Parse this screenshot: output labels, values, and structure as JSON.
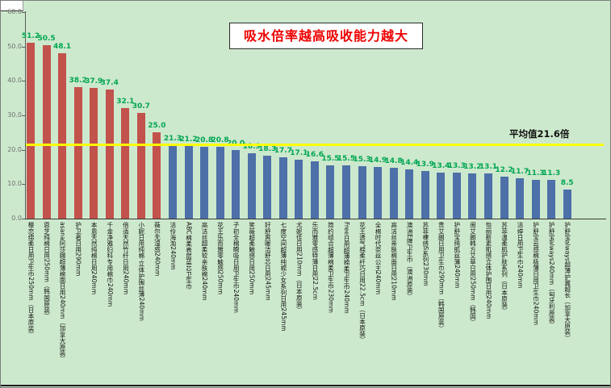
{
  "chart_data": {
    "type": "bar",
    "title": "吸水倍率越高吸收能力越大",
    "xlabel": "",
    "ylabel": "",
    "ylim": [
      0,
      60
    ],
    "grid": false,
    "legend": "none",
    "average_value": 21.6,
    "average_label": "平均值21.6倍",
    "yticks": [
      "0.0",
      "10.0",
      "20.0",
      "30.0",
      "40.0",
      "50.0",
      "60.0"
    ],
    "ytick_values": [
      0,
      10,
      20,
      30,
      40,
      50,
      60
    ],
    "categories": [
      "樱恋绵柔日用卫生巾250mm（日本原装）",
      "恩芝纯棉日用250mm（韩国原装）",
      "asana阿莎娜超薄棉面日用240mm（加拿大原装）",
      "护卫者日用290mm",
      "本恩天然纯棉日用240mm",
      "千金净雅妇科专用棉巾240mm",
      "倍适天然竹纤日用240mm",
      "小妮日用纯棉·立体护围丝薄240mm",
      "薇尔无湿感240mm",
      "洁伶海淘240mm",
      "ABC棉柔表层蓝芯卫生巾",
      "高洁丝超柔软亲肤棉240mm",
      "花王乐而雅零触感250mm",
      "子初全棉瞬吸日用卫生巾240mm",
      "笑薇超柔触感日用250mm",
      "好舒爽暖洁舒芯日用245mm",
      "七度空间超薄纯棉少女系列日用245mm",
      "尤妮佳日用210mm（日本原装）",
      "乐而雅零感特薄日用22.5cm",
      "简约组合超薄棉柔卫生巾230mm",
      "Free日用超薄棉柔卫生巾240mm",
      "花王透气棉柔纤巧日用22.5cm（日本原装）",
      "全棉时代奈丝公主240mm",
      "高洁丝亲肤棉面日用210mm",
      "澳洲E牌卫生巾（澳洲原装）",
      "苏菲裸感S系列230mm",
      "贵艾朗日用卫生巾290mm（韩国原装）",
      "护舒宝纯肌丝薄240mm",
      "闺艾朗韩方艾草日用250mm（韩国）",
      "怡丽新素肌感立体护围日用240mm",
      "苏菲温柔肌护肤系列（日本原装）",
      "洁婷日用卫生巾240mm",
      "护舒宝云感棉极薄日用卫生巾240mm",
      "护舒宝always240mm（匈牙利原装）",
      "护舒宝always超薄护翼超长（加拿大原装）"
    ],
    "values": [
      51.2,
      50.5,
      48.1,
      38.2,
      37.9,
      37.4,
      32.1,
      30.7,
      25.0,
      21.3,
      21.2,
      20.8,
      20.8,
      20.0,
      18.9,
      18.3,
      17.7,
      17.1,
      16.6,
      15.5,
      15.5,
      15.3,
      14.9,
      14.8,
      14.4,
      13.9,
      13.4,
      13.3,
      13.2,
      13.1,
      12.2,
      11.7,
      11.3,
      11.3,
      8.5
    ],
    "colors": {
      "bar_above_average": "#c2524c",
      "bar_below_average": "#4d70a8",
      "value_label": "#00a651",
      "average_line": "#ffff00",
      "background": "#cde9cd",
      "title_text": "#ee0000"
    }
  }
}
